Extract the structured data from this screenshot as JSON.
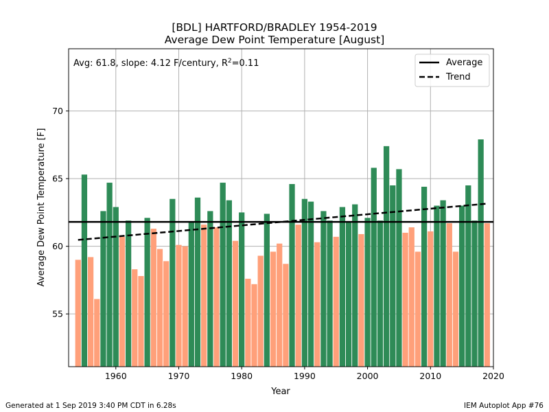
{
  "chart_data": {
    "type": "bar",
    "title": "[BDL] HARTFORD/BRADLEY 1954-2019",
    "subtitle": "Average Dew Point Temperature [August]",
    "xlabel": "Year",
    "ylabel": "Average Dew Point Temperature [F]",
    "xlim": [
      1952.5,
      2020
    ],
    "ylim": [
      51.1,
      74.6
    ],
    "x_ticks": [
      1960,
      1970,
      1980,
      1990,
      2000,
      2010,
      2020
    ],
    "y_ticks": [
      55,
      60,
      65,
      70
    ],
    "grid": true,
    "annotation": {
      "text": "Avg: 61.8, slope: 4.12 F/century, R",
      "sup": "2",
      "suffix": "=0.11"
    },
    "legend": {
      "position": "top-right",
      "entries": [
        {
          "label": "Average",
          "style": "solid"
        },
        {
          "label": "Trend",
          "style": "dashed"
        }
      ]
    },
    "average": 61.8,
    "trend": {
      "start": [
        1954,
        60.47
      ],
      "end": [
        2019,
        63.15
      ]
    },
    "colors": {
      "above": "#2e8b57",
      "below": "#ffa07a"
    },
    "years": [
      1954,
      1955,
      1956,
      1957,
      1958,
      1959,
      1960,
      1961,
      1962,
      1963,
      1964,
      1965,
      1966,
      1967,
      1968,
      1969,
      1970,
      1971,
      1972,
      1973,
      1974,
      1975,
      1976,
      1977,
      1978,
      1979,
      1980,
      1981,
      1982,
      1983,
      1984,
      1985,
      1986,
      1987,
      1988,
      1989,
      1990,
      1991,
      1992,
      1993,
      1994,
      1995,
      1996,
      1997,
      1998,
      1999,
      2000,
      2001,
      2002,
      2003,
      2004,
      2005,
      2006,
      2007,
      2008,
      2009,
      2010,
      2011,
      2012,
      2013,
      2014,
      2015,
      2016,
      2017,
      2018,
      2019
    ],
    "values": [
      59.0,
      65.3,
      59.2,
      56.1,
      62.6,
      64.7,
      62.9,
      60.7,
      61.9,
      58.3,
      57.8,
      62.1,
      61.3,
      59.8,
      58.9,
      63.5,
      60.1,
      60.0,
      61.8,
      63.6,
      61.6,
      62.6,
      61.4,
      64.7,
      63.4,
      60.4,
      62.5,
      57.6,
      57.2,
      59.3,
      62.4,
      59.6,
      60.2,
      58.7,
      64.6,
      61.6,
      63.5,
      63.3,
      60.3,
      62.6,
      61.9,
      60.7,
      62.9,
      61.8,
      63.1,
      60.9,
      62.1,
      65.8,
      61.9,
      67.4,
      64.5,
      65.7,
      61.0,
      61.4,
      59.6,
      64.4,
      61.1,
      63.0,
      63.4,
      61.7,
      59.6,
      63.0,
      64.5,
      61.9,
      67.9,
      61.7
    ]
  },
  "footer": {
    "left": "Generated at 1 Sep 2019 3:40 PM CDT in 6.28s",
    "right": "IEM Autoplot App #76"
  }
}
